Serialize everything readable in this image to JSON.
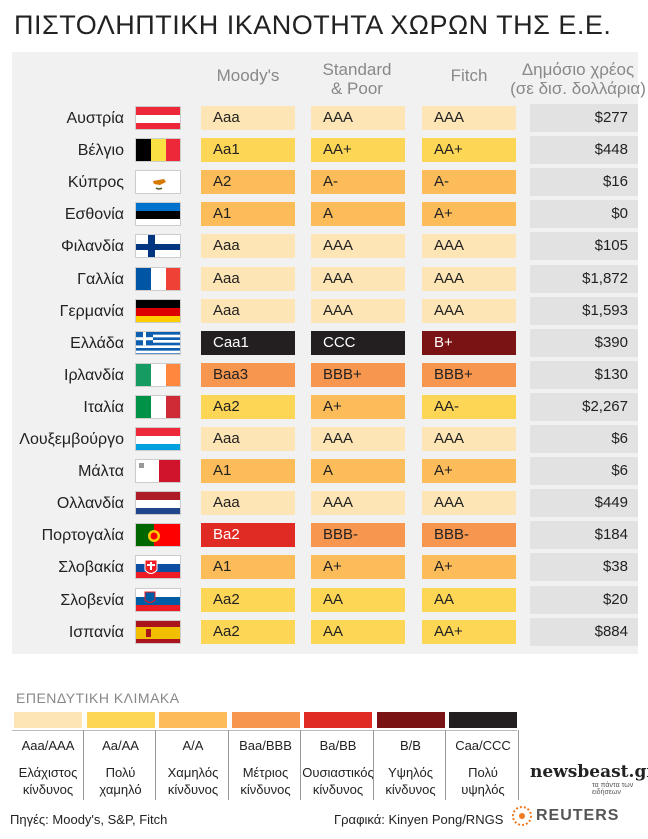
{
  "title": "ΠΙΣΤΟΛΗΠΤΙΚΗ ΙΚΑΝΟΤΗΤΑ ΧΩΡΩΝ ΤΗΣ Ε.Ε.",
  "columns": {
    "moodys": "Moody's",
    "sp_line1": "Standard",
    "sp_line2": "& Poor",
    "fitch": "Fitch",
    "debt_line1": "Δημόσιο χρέος",
    "debt_line2": "(σε δισ. δολλάρια)"
  },
  "rows": [
    {
      "country": "Αυστρία",
      "flag": "austria",
      "moodys": "Aaa",
      "sp": "AAA",
      "fitch": "AAA",
      "debt": "$277"
    },
    {
      "country": "Βέλγιο",
      "flag": "belgium",
      "moodys": "Aa1",
      "sp": "AA+",
      "fitch": "AA+",
      "debt": "$448"
    },
    {
      "country": "Κύπρος",
      "flag": "cyprus",
      "moodys": "A2",
      "sp": "A-",
      "fitch": "A-",
      "debt": "$16"
    },
    {
      "country": "Εσθονία",
      "flag": "estonia",
      "moodys": "A1",
      "sp": "A",
      "fitch": "A+",
      "debt": "$0"
    },
    {
      "country": "Φιλανδία",
      "flag": "finland",
      "moodys": "Aaa",
      "sp": "AAA",
      "fitch": "AAA",
      "debt": "$105"
    },
    {
      "country": "Γαλλία",
      "flag": "france",
      "moodys": "Aaa",
      "sp": "AAA",
      "fitch": "AAA",
      "debt": "$1,872"
    },
    {
      "country": "Γερμανία",
      "flag": "germany",
      "moodys": "Aaa",
      "sp": "AAA",
      "fitch": "AAA",
      "debt": "$1,593"
    },
    {
      "country": "Ελλάδα",
      "flag": "greece",
      "moodys": "Caa1",
      "sp": "CCC",
      "fitch": "B+",
      "debt": "$390"
    },
    {
      "country": "Ιρλανδία",
      "flag": "ireland",
      "moodys": "Baa3",
      "sp": "BBB+",
      "fitch": "BBB+",
      "debt": "$130"
    },
    {
      "country": "Ιταλία",
      "flag": "italy",
      "moodys": "Aa2",
      "sp": "A+",
      "fitch": "AA-",
      "debt": "$2,267"
    },
    {
      "country": "Λουξεμβούργο",
      "flag": "luxembourg",
      "moodys": "Aaa",
      "sp": "AAA",
      "fitch": "AAA",
      "debt": "$6"
    },
    {
      "country": "Μάλτα",
      "flag": "malta",
      "moodys": "A1",
      "sp": "A",
      "fitch": "A+",
      "debt": "$6"
    },
    {
      "country": "Ολλανδία",
      "flag": "netherlands",
      "moodys": "Aaa",
      "sp": "AAA",
      "fitch": "AAA",
      "debt": "$449"
    },
    {
      "country": "Πορτογαλία",
      "flag": "portugal",
      "moodys": "Ba2",
      "sp": "BBB-",
      "fitch": "BBB-",
      "debt": "$184"
    },
    {
      "country": "Σλοβακία",
      "flag": "slovakia",
      "moodys": "A1",
      "sp": "A+",
      "fitch": "A+",
      "debt": "$38"
    },
    {
      "country": "Σλοβενία",
      "flag": "slovenia",
      "moodys": "Aa2",
      "sp": "AA",
      "fitch": "AA",
      "debt": "$20"
    },
    {
      "country": "Ισπανία",
      "flag": "spain",
      "moodys": "Aa2",
      "sp": "AA",
      "fitch": "AA+",
      "debt": "$884"
    }
  ],
  "legend": {
    "title": "ΕΠΕΝΔΥΤΙΚΗ ΚΛΙΜΑΚΑ",
    "items": [
      {
        "code": "Aaa/AAA",
        "desc1": "Ελάχιστος",
        "desc2": "κίνδυνος",
        "color": "#fde5b5"
      },
      {
        "code": "Aa/AA",
        "desc1": "Πολύ",
        "desc2": "χαμηλό",
        "color": "#fdd655"
      },
      {
        "code": "A/A",
        "desc1": "Χαμηλός",
        "desc2": "κίνδυνος",
        "color": "#fcbc5a"
      },
      {
        "code": "Baa/BBB",
        "desc1": "Μέτριος",
        "desc2": "κίνδυνος",
        "color": "#f7964e"
      },
      {
        "code": "Ba/BB",
        "desc1": "Ουσιαστικός",
        "desc2": "κίνδυνος",
        "color": "#e02b24"
      },
      {
        "code": "B/B",
        "desc1": "Υψηλός",
        "desc2": "κίνδυνος",
        "color": "#7a1313"
      },
      {
        "code": "Caa/CCC",
        "desc1": "Πολύ",
        "desc2": "υψηλός",
        "color": "#231f20"
      }
    ]
  },
  "footer": {
    "sources": "Πηγές: Moody's, S&P, Fitch",
    "credit": "Γραφικά: Kinyen Pong/RNGS",
    "brand": "newsbeast.gr",
    "brand_tagline": "τα πάντα των ειδήσεων",
    "reuters": "REUTERS"
  }
}
